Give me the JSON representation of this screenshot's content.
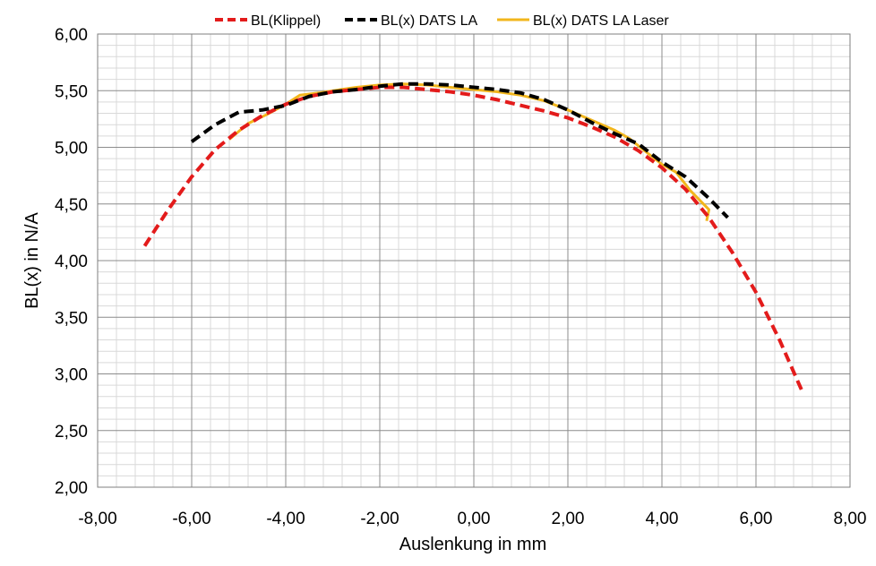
{
  "chart_data": {
    "type": "line",
    "title": "",
    "xlabel": "Auslenkung in mm",
    "ylabel": "BL(x) in N/A",
    "xlim": [
      -8,
      8
    ],
    "ylim": [
      2,
      6
    ],
    "x_major_step": 2,
    "y_major_step": 0.5,
    "x_tick_labels": [
      "-8,00",
      "-6,00",
      "-4,00",
      "-2,00",
      "0,00",
      "2,00",
      "4,00",
      "6,00",
      "8,00"
    ],
    "y_tick_labels": [
      "2,00",
      "2,50",
      "3,00",
      "3,50",
      "4,00",
      "4,50",
      "5,00",
      "5,50",
      "6,00"
    ],
    "grid": true,
    "minor_grid": true,
    "legend_position": "top",
    "series": [
      {
        "name": "BL(Klippel)",
        "color": "#e31b1b",
        "dash": "dashed",
        "x": [
          -7.0,
          -6.5,
          -6.0,
          -5.5,
          -5.0,
          -4.5,
          -4.0,
          -3.5,
          -3.0,
          -2.5,
          -2.0,
          -1.5,
          -1.0,
          -0.5,
          0.0,
          0.5,
          1.0,
          1.5,
          2.0,
          2.5,
          3.0,
          3.5,
          4.0,
          4.5,
          5.0,
          5.5,
          6.0,
          6.5,
          7.0
        ],
        "y": [
          4.13,
          4.45,
          4.74,
          4.98,
          5.15,
          5.28,
          5.38,
          5.45,
          5.49,
          5.51,
          5.53,
          5.53,
          5.51,
          5.49,
          5.46,
          5.42,
          5.37,
          5.32,
          5.26,
          5.18,
          5.09,
          4.97,
          4.82,
          4.63,
          4.38,
          4.07,
          3.72,
          3.3,
          2.83
        ]
      },
      {
        "name": "BL(x) DATS LA",
        "color": "#000000",
        "dash": "dashed",
        "x": [
          -6.0,
          -5.5,
          -5.0,
          -4.5,
          -4.0,
          -3.5,
          -3.0,
          -2.5,
          -2.0,
          -1.5,
          -1.0,
          -0.5,
          0.0,
          0.5,
          1.0,
          1.5,
          2.0,
          2.5,
          3.0,
          3.5,
          4.0,
          4.5,
          5.0,
          5.4
        ],
        "y": [
          5.05,
          5.2,
          5.31,
          5.33,
          5.37,
          5.45,
          5.49,
          5.51,
          5.54,
          5.56,
          5.56,
          5.55,
          5.53,
          5.51,
          5.48,
          5.42,
          5.33,
          5.22,
          5.12,
          5.03,
          4.87,
          4.74,
          4.55,
          4.38
        ]
      },
      {
        "name": "BL(x) DATS LA Laser",
        "color": "#f2b61c",
        "dash": "solid",
        "x": [
          -5.2,
          -4.8,
          -4.4,
          -4.0,
          -3.7,
          -3.3,
          -3.0,
          -2.5,
          -2.0,
          -1.5,
          -1.0,
          -0.5,
          0.0,
          0.5,
          1.0,
          1.5,
          2.0,
          2.5,
          3.0,
          3.3,
          3.6,
          4.0,
          4.3,
          4.6,
          5.0,
          4.95
        ],
        "y": [
          5.07,
          5.21,
          5.29,
          5.38,
          5.46,
          5.48,
          5.5,
          5.53,
          5.55,
          5.56,
          5.55,
          5.53,
          5.51,
          5.49,
          5.46,
          5.41,
          5.33,
          5.24,
          5.15,
          5.08,
          4.98,
          4.85,
          4.78,
          4.62,
          4.45,
          4.35
        ]
      }
    ]
  }
}
